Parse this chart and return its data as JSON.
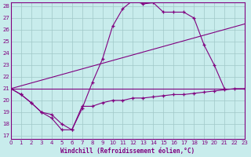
{
  "title": "Windchill (Refroidissement éolien,°C)",
  "bg_color": "#c8ecec",
  "line_color": "#800080",
  "grid_color": "#a0c8c8",
  "xmin": 0,
  "xmax": 23,
  "ymin": 17,
  "ymax": 28,
  "yticks": [
    17,
    18,
    19,
    20,
    21,
    22,
    23,
    24,
    25,
    26,
    27,
    28
  ],
  "xticks": [
    0,
    1,
    2,
    3,
    4,
    5,
    6,
    7,
    8,
    9,
    10,
    11,
    12,
    13,
    14,
    15,
    16,
    17,
    18,
    19,
    20,
    21,
    22,
    23
  ],
  "line1_x": [
    0,
    1,
    2,
    3,
    4,
    5,
    6,
    7,
    8,
    9,
    10,
    11,
    12,
    13,
    14,
    15,
    16,
    17,
    18,
    19,
    20,
    21
  ],
  "line1_y": [
    21.0,
    20.5,
    19.8,
    19.0,
    18.5,
    17.5,
    17.5,
    19.3,
    21.5,
    23.5,
    26.3,
    27.8,
    28.5,
    28.2,
    28.3,
    27.5,
    27.5,
    27.5,
    27.0,
    24.7,
    23.0,
    21.0
  ],
  "line2_x": [
    0,
    1,
    2,
    3,
    4,
    5,
    6,
    7,
    8,
    9,
    10,
    11,
    12,
    13,
    14,
    15,
    16,
    17,
    18,
    19,
    20,
    21,
    22,
    23
  ],
  "line2_y": [
    21.0,
    20.5,
    19.8,
    19.0,
    18.8,
    18.0,
    17.5,
    19.5,
    19.5,
    19.8,
    20.0,
    20.0,
    20.2,
    20.2,
    20.3,
    20.4,
    20.5,
    20.5,
    20.6,
    20.7,
    20.8,
    20.9,
    21.0,
    21.0
  ],
  "line3_x": [
    0,
    23
  ],
  "line3_y": [
    21.0,
    26.5
  ],
  "line4_x": [
    0,
    23
  ],
  "line4_y": [
    21.0,
    21.0
  ]
}
